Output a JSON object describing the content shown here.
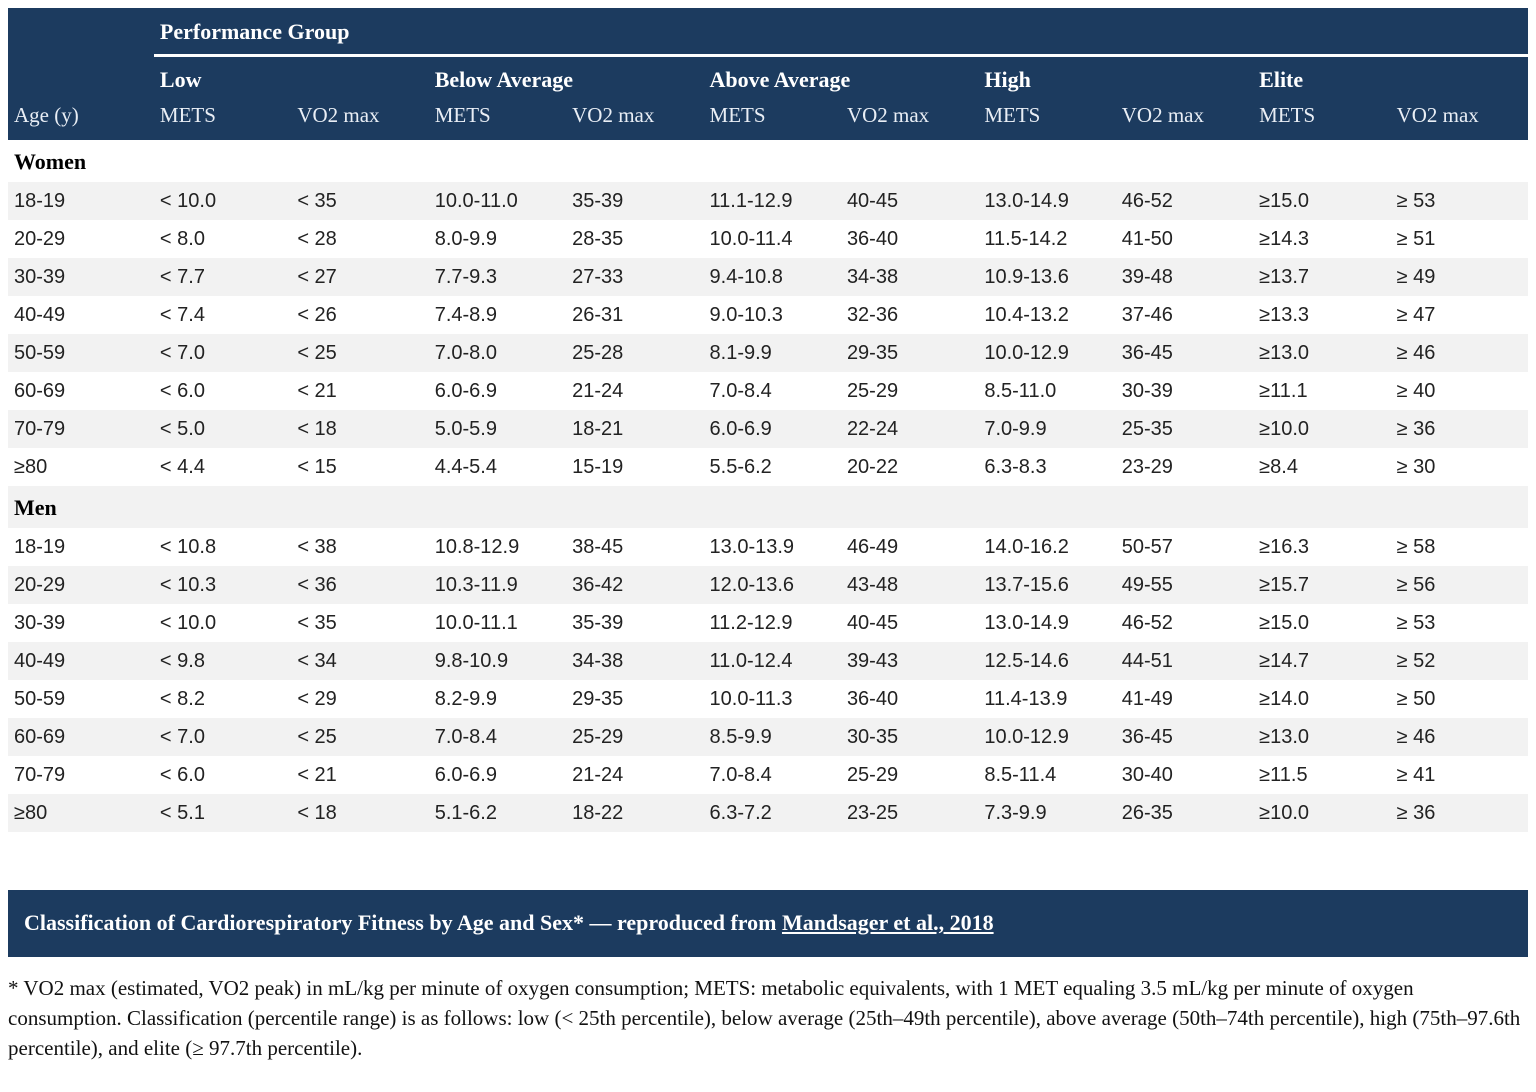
{
  "table": {
    "performance_group_label": "Performance Group",
    "corner_label": "Age (y)",
    "groups": [
      "Low",
      "Below Average",
      "Above Average",
      "High",
      "Elite"
    ],
    "sub_headers": [
      "METS",
      "VO2 max"
    ],
    "sections": [
      {
        "label": "Women",
        "rows": [
          {
            "age": "18-19",
            "values": [
              "< 10.0",
              "< 35",
              "10.0-11.0",
              "35-39",
              "11.1-12.9",
              "40-45",
              "13.0-14.9",
              "46-52",
              "≥15.0",
              "≥ 53"
            ]
          },
          {
            "age": "20-29",
            "values": [
              "< 8.0",
              "< 28",
              "8.0-9.9",
              "28-35",
              "10.0-11.4",
              "36-40",
              "11.5-14.2",
              "41-50",
              "≥14.3",
              "≥ 51"
            ]
          },
          {
            "age": "30-39",
            "values": [
              "< 7.7",
              "< 27",
              "7.7-9.3",
              "27-33",
              "9.4-10.8",
              "34-38",
              "10.9-13.6",
              "39-48",
              "≥13.7",
              "≥ 49"
            ]
          },
          {
            "age": "40-49",
            "values": [
              "< 7.4",
              "< 26",
              "7.4-8.9",
              "26-31",
              "9.0-10.3",
              "32-36",
              "10.4-13.2",
              "37-46",
              "≥13.3",
              "≥ 47"
            ]
          },
          {
            "age": "50-59",
            "values": [
              "< 7.0",
              "< 25",
              "7.0-8.0",
              "25-28",
              "8.1-9.9",
              "29-35",
              "10.0-12.9",
              "36-45",
              "≥13.0",
              "≥ 46"
            ]
          },
          {
            "age": "60-69",
            "values": [
              "< 6.0",
              "< 21",
              "6.0-6.9",
              "21-24",
              "7.0-8.4",
              "25-29",
              "8.5-11.0",
              "30-39",
              "≥11.1",
              "≥ 40"
            ]
          },
          {
            "age": "70-79",
            "values": [
              "< 5.0",
              "< 18",
              "5.0-5.9",
              "18-21",
              "6.0-6.9",
              "22-24",
              "7.0-9.9",
              "25-35",
              "≥10.0",
              "≥ 36"
            ]
          },
          {
            "age": "≥80",
            "values": [
              "< 4.4",
              "< 15",
              "4.4-5.4",
              "15-19",
              "5.5-6.2",
              "20-22",
              "6.3-8.3",
              "23-29",
              "≥8.4",
              "≥ 30"
            ]
          }
        ]
      },
      {
        "label": "Men",
        "rows": [
          {
            "age": "18-19",
            "values": [
              "< 10.8",
              "< 38",
              "10.8-12.9",
              "38-45",
              "13.0-13.9",
              "46-49",
              "14.0-16.2",
              "50-57",
              "≥16.3",
              "≥ 58"
            ]
          },
          {
            "age": "20-29",
            "values": [
              "< 10.3",
              "< 36",
              "10.3-11.9",
              "36-42",
              "12.0-13.6",
              "43-48",
              "13.7-15.6",
              "49-55",
              "≥15.7",
              "≥ 56"
            ]
          },
          {
            "age": "30-39",
            "values": [
              "< 10.0",
              "< 35",
              "10.0-11.1",
              "35-39",
              "11.2-12.9",
              "40-45",
              "13.0-14.9",
              "46-52",
              "≥15.0",
              "≥ 53"
            ]
          },
          {
            "age": "40-49",
            "values": [
              "< 9.8",
              "< 34",
              "9.8-10.9",
              "34-38",
              "11.0-12.4",
              "39-43",
              "12.5-14.6",
              "44-51",
              "≥14.7",
              "≥ 52"
            ]
          },
          {
            "age": "50-59",
            "values": [
              "< 8.2",
              "< 29",
              "8.2-9.9",
              "29-35",
              "10.0-11.3",
              "36-40",
              "11.4-13.9",
              "41-49",
              "≥14.0",
              "≥ 50"
            ]
          },
          {
            "age": "60-69",
            "values": [
              "< 7.0",
              "< 25",
              "7.0-8.4",
              "25-29",
              "8.5-9.9",
              "30-35",
              "10.0-12.9",
              "36-45",
              "≥13.0",
              "≥ 46"
            ]
          },
          {
            "age": "70-79",
            "values": [
              "< 6.0",
              "< 21",
              "6.0-6.9",
              "21-24",
              "7.0-8.4",
              "25-29",
              "8.5-11.4",
              "30-40",
              "≥11.5",
              "≥ 41"
            ]
          },
          {
            "age": "≥80",
            "values": [
              "< 5.1",
              "< 18",
              "5.1-6.2",
              "18-22",
              "6.3-7.2",
              "23-25",
              "7.3-9.9",
              "26-35",
              "≥10.0",
              "≥ 36"
            ]
          }
        ]
      }
    ]
  },
  "caption": {
    "prefix": "Classification of Cardiorespiratory Fitness by Age and Sex* — reproduced from ",
    "link_text": "Mandsager et al., 2018"
  },
  "footnote": "* VO2 max (estimated, VO2 peak) in mL/kg per minute of oxygen consumption; METS: metabolic equivalents, with 1 MET equaling 3.5 mL/kg per minute of oxygen consumption. Classification (percentile range) is as follows: low (< 25th percentile), below average (25th–49th percentile), above average (50th–74th percentile), high (75th–97.6th percentile), and elite (≥ 97.7th percentile).",
  "colors": {
    "header_navy": "#1c3b5f",
    "stripe_gray": "#f2f2f2",
    "text_dark": "#222222"
  }
}
